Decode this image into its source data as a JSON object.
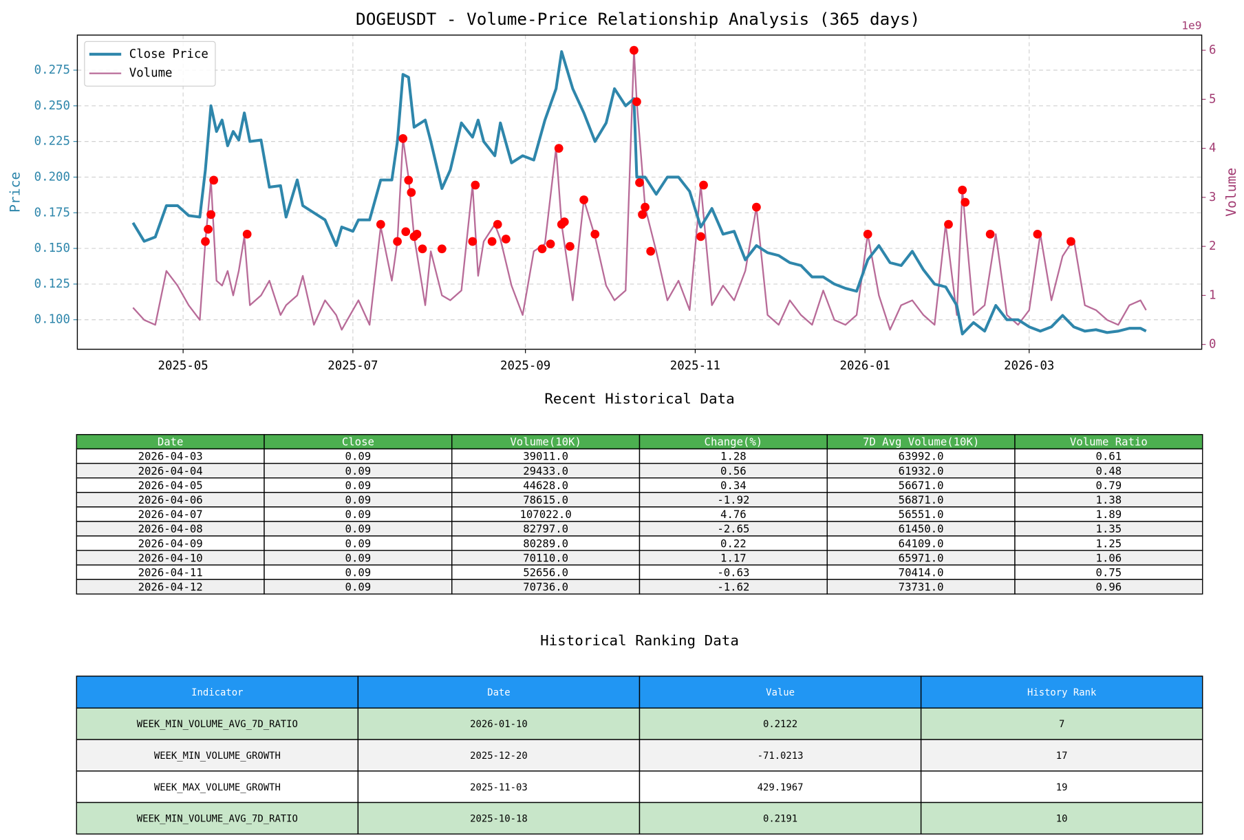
{
  "chart_data": {
    "type": "line",
    "title": "DOGEUSDT - Volume-Price Relationship Analysis (365 days)",
    "y_label": "Price",
    "y2_label": "Volume",
    "y2_offset": "1e9",
    "grid": true,
    "legend": "upper left",
    "x": [
      "2025-04-13",
      "2025-04-17",
      "2025-04-21",
      "2025-04-25",
      "2025-04-29",
      "2025-05-03",
      "2025-05-07",
      "2025-05-09",
      "2025-05-11",
      "2025-05-13",
      "2025-05-15",
      "2025-05-17",
      "2025-05-19",
      "2025-05-21",
      "2025-05-23",
      "2025-05-25",
      "2025-05-29",
      "2025-06-01",
      "2025-06-05",
      "2025-06-07",
      "2025-06-11",
      "2025-06-13",
      "2025-06-17",
      "2025-06-21",
      "2025-06-25",
      "2025-06-27",
      "2025-07-01",
      "2025-07-03",
      "2025-07-07",
      "2025-07-11",
      "2025-07-15",
      "2025-07-17",
      "2025-07-19",
      "2025-07-21",
      "2025-07-23",
      "2025-07-27",
      "2025-07-29",
      "2025-08-02",
      "2025-08-05",
      "2025-08-09",
      "2025-08-13",
      "2025-08-15",
      "2025-08-17",
      "2025-08-21",
      "2025-08-23",
      "2025-08-27",
      "2025-08-31",
      "2025-09-04",
      "2025-09-08",
      "2025-09-12",
      "2025-09-14",
      "2025-09-18",
      "2025-09-22",
      "2025-09-26",
      "2025-09-30",
      "2025-10-03",
      "2025-10-07",
      "2025-10-10",
      "2025-10-11",
      "2025-10-14",
      "2025-10-18",
      "2025-10-22",
      "2025-10-26",
      "2025-10-30",
      "2025-11-03",
      "2025-11-07",
      "2025-11-11",
      "2025-11-15",
      "2025-11-19",
      "2025-11-23",
      "2025-11-27",
      "2025-12-01",
      "2025-12-05",
      "2025-12-09",
      "2025-12-13",
      "2025-12-17",
      "2025-12-21",
      "2025-12-25",
      "2025-12-29",
      "2026-01-02",
      "2026-01-06",
      "2026-01-10",
      "2026-01-14",
      "2026-01-18",
      "2026-01-22",
      "2026-01-26",
      "2026-01-30",
      "2026-02-03",
      "2026-02-05",
      "2026-02-09",
      "2026-02-13",
      "2026-02-17",
      "2026-02-21",
      "2026-02-25",
      "2026-03-01",
      "2026-03-05",
      "2026-03-09",
      "2026-03-13",
      "2026-03-17",
      "2026-03-21",
      "2026-03-25",
      "2026-03-29",
      "2026-04-02",
      "2026-04-06",
      "2026-04-10",
      "2026-04-12"
    ],
    "series": [
      {
        "name": "Close Price",
        "color": "#2e86ab",
        "axis": "y",
        "values": [
          0.168,
          0.155,
          0.158,
          0.18,
          0.18,
          0.173,
          0.172,
          0.205,
          0.25,
          0.232,
          0.24,
          0.222,
          0.232,
          0.226,
          0.245,
          0.225,
          0.226,
          0.193,
          0.194,
          0.172,
          0.198,
          0.18,
          0.175,
          0.17,
          0.152,
          0.165,
          0.162,
          0.17,
          0.17,
          0.198,
          0.198,
          0.225,
          0.272,
          0.27,
          0.235,
          0.24,
          0.225,
          0.192,
          0.205,
          0.238,
          0.228,
          0.24,
          0.225,
          0.215,
          0.238,
          0.21,
          0.215,
          0.212,
          0.24,
          0.262,
          0.288,
          0.262,
          0.245,
          0.225,
          0.238,
          0.262,
          0.25,
          0.255,
          0.2,
          0.2,
          0.188,
          0.2,
          0.2,
          0.19,
          0.165,
          0.178,
          0.16,
          0.162,
          0.142,
          0.152,
          0.147,
          0.145,
          0.14,
          0.138,
          0.13,
          0.13,
          0.125,
          0.122,
          0.12,
          0.142,
          0.152,
          0.14,
          0.138,
          0.148,
          0.135,
          0.125,
          0.123,
          0.11,
          0.09,
          0.098,
          0.092,
          0.11,
          0.1,
          0.1,
          0.095,
          0.092,
          0.095,
          0.103,
          0.095,
          0.092,
          0.093,
          0.091,
          0.092,
          0.094,
          0.094,
          0.092
        ]
      },
      {
        "name": "Volume",
        "color": "#b86b98",
        "axis": "y2",
        "values": [
          0.75,
          0.5,
          0.4,
          1.5,
          1.2,
          0.8,
          0.5,
          2.1,
          3.35,
          1.3,
          1.2,
          1.5,
          1.0,
          1.5,
          2.2,
          0.8,
          1.0,
          1.3,
          0.6,
          0.8,
          1.0,
          1.4,
          0.4,
          0.9,
          0.6,
          0.3,
          0.7,
          0.9,
          0.4,
          2.4,
          1.3,
          2.1,
          4.2,
          3.4,
          2.2,
          0.8,
          1.9,
          1.0,
          0.9,
          1.1,
          3.25,
          1.4,
          2.1,
          2.45,
          2.15,
          1.2,
          0.6,
          1.9,
          2.05,
          4.0,
          2.45,
          0.9,
          2.95,
          2.2,
          1.2,
          0.9,
          1.1,
          6.0,
          4.95,
          2.8,
          1.9,
          0.9,
          1.3,
          0.7,
          3.25,
          0.8,
          1.2,
          0.9,
          1.5,
          2.8,
          0.6,
          0.4,
          0.9,
          0.6,
          0.4,
          1.1,
          0.5,
          0.4,
          0.6,
          2.25,
          1.0,
          0.3,
          0.8,
          0.9,
          0.6,
          0.4,
          2.45,
          0.6,
          3.15,
          0.6,
          0.8,
          2.25,
          0.6,
          0.4,
          0.7,
          2.25,
          0.9,
          1.8,
          2.15,
          0.8,
          0.7,
          0.5,
          0.4,
          0.8,
          0.9,
          0.7
        ]
      }
    ],
    "spikes": {
      "color": "#ff0000",
      "x": [
        "2025-05-09",
        "2025-05-10",
        "2025-05-11",
        "2025-05-12",
        "2025-05-24",
        "2025-07-11",
        "2025-07-17",
        "2025-07-19",
        "2025-07-20",
        "2025-07-21",
        "2025-07-22",
        "2025-07-23",
        "2025-07-24",
        "2025-07-26",
        "2025-08-02",
        "2025-08-13",
        "2025-08-14",
        "2025-08-20",
        "2025-08-22",
        "2025-08-25",
        "2025-09-07",
        "2025-09-10",
        "2025-09-13",
        "2025-09-14",
        "2025-09-15",
        "2025-09-17",
        "2025-09-22",
        "2025-09-26",
        "2025-10-10",
        "2025-10-11",
        "2025-10-12",
        "2025-10-13",
        "2025-10-14",
        "2025-10-16",
        "2025-11-03",
        "2025-11-04",
        "2025-11-23",
        "2026-01-02",
        "2026-01-31",
        "2026-02-05",
        "2026-02-06",
        "2026-02-15",
        "2026-03-04",
        "2026-03-16"
      ],
      "values": [
        2.1,
        2.35,
        2.65,
        3.35,
        2.25,
        2.45,
        2.1,
        4.2,
        2.3,
        3.35,
        3.1,
        2.2,
        2.25,
        1.95,
        1.95,
        2.1,
        3.25,
        2.1,
        2.45,
        2.15,
        1.95,
        2.05,
        4.0,
        2.45,
        2.5,
        2.0,
        2.95,
        2.25,
        6.0,
        4.95,
        3.3,
        2.65,
        2.8,
        1.9,
        2.2,
        3.25,
        2.8,
        2.25,
        2.45,
        3.15,
        2.9,
        2.25,
        2.25,
        2.1
      ]
    },
    "xlim": [
      "2025-03-24",
      "2026-05-02"
    ],
    "xticks": [
      {
        "value": "2025-05-01",
        "label": "2025-05"
      },
      {
        "value": "2025-07-01",
        "label": "2025-07"
      },
      {
        "value": "2025-09-01",
        "label": "2025-09"
      },
      {
        "value": "2025-11-01",
        "label": "2025-11"
      },
      {
        "value": "2026-01-01",
        "label": "2026-01"
      },
      {
        "value": "2026-03-01",
        "label": "2026-03"
      }
    ],
    "ylim": [
      0.0793,
      0.2996
    ],
    "yticks": [
      {
        "value": 0.1,
        "label": "0.100"
      },
      {
        "value": 0.125,
        "label": "0.125"
      },
      {
        "value": 0.15,
        "label": "0.150"
      },
      {
        "value": 0.175,
        "label": "0.175"
      },
      {
        "value": 0.2,
        "label": "0.200"
      },
      {
        "value": 0.225,
        "label": "0.225"
      },
      {
        "value": 0.25,
        "label": "0.250"
      },
      {
        "value": 0.275,
        "label": "0.275"
      }
    ],
    "y2lim": [
      -0.098,
      6.31
    ],
    "y2ticks": [
      0,
      1,
      2,
      3,
      4,
      5,
      6
    ]
  },
  "tables": [
    {
      "title": "Recent Historical Data",
      "header": [
        "Date",
        "Close",
        "Volume(10K)",
        "Change(%)",
        "7D Avg Volume(10K)",
        "Volume Ratio"
      ],
      "rows": [
        [
          "2026-04-03",
          "0.09",
          "39011.0",
          "1.28",
          "63992.0",
          "0.61"
        ],
        [
          "2026-04-04",
          "0.09",
          "29433.0",
          "0.56",
          "61932.0",
          "0.48"
        ],
        [
          "2026-04-05",
          "0.09",
          "44628.0",
          "0.34",
          "56671.0",
          "0.79"
        ],
        [
          "2026-04-06",
          "0.09",
          "78615.0",
          "-1.92",
          "56871.0",
          "1.38"
        ],
        [
          "2026-04-07",
          "0.09",
          "107022.0",
          "4.76",
          "56551.0",
          "1.89"
        ],
        [
          "2026-04-08",
          "0.09",
          "82797.0",
          "-2.65",
          "61450.0",
          "1.35"
        ],
        [
          "2026-04-09",
          "0.09",
          "80289.0",
          "0.22",
          "64109.0",
          "1.25"
        ],
        [
          "2026-04-10",
          "0.09",
          "70110.0",
          "1.17",
          "65971.0",
          "1.06"
        ],
        [
          "2026-04-11",
          "0.09",
          "52656.0",
          "-0.63",
          "70414.0",
          "0.75"
        ],
        [
          "2026-04-12",
          "0.09",
          "70736.0",
          "-1.62",
          "73731.0",
          "0.96"
        ]
      ]
    },
    {
      "title": "Historical Ranking Data",
      "header": [
        "Indicator",
        "Date",
        "Value",
        "History Rank"
      ],
      "rows": [
        [
          "WEEK_MIN_VOLUME_AVG_7D_RATIO",
          "2026-01-10",
          "0.2122",
          "7"
        ],
        [
          "WEEK_MIN_VOLUME_GROWTH",
          "2025-12-20",
          "-71.0213",
          "17"
        ],
        [
          "WEEK_MAX_VOLUME_GROWTH",
          "2025-11-03",
          "429.1967",
          "19"
        ],
        [
          "WEEK_MIN_VOLUME_AVG_7D_RATIO",
          "2025-10-18",
          "0.2191",
          "10"
        ]
      ]
    }
  ]
}
